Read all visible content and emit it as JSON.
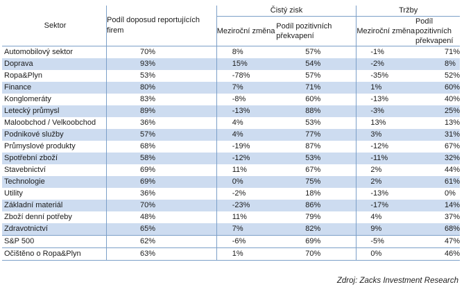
{
  "headers": {
    "sector": "Sektor",
    "share": "Podíl doposud reportujících firem",
    "net_income": "Čistý zisk",
    "revenue": "Tržby",
    "yoy": "Meziroční změna",
    "positive_surprise": "Podíl pozitivních překvapení"
  },
  "rows": [
    {
      "sector": "Automobilový sektor",
      "share": "70%",
      "ni_yoy": "8%",
      "ni_pos": "57%",
      "rev_yoy": "-1%",
      "rev_pos": "71%"
    },
    {
      "sector": "Doprava",
      "share": "93%",
      "ni_yoy": "15%",
      "ni_pos": "54%",
      "rev_yoy": "-2%",
      "rev_pos": "8%"
    },
    {
      "sector": "Ropa&Plyn",
      "share": "53%",
      "ni_yoy": "-78%",
      "ni_pos": "57%",
      "rev_yoy": "-35%",
      "rev_pos": "52%"
    },
    {
      "sector": "Finance",
      "share": "80%",
      "ni_yoy": "7%",
      "ni_pos": "71%",
      "rev_yoy": "1%",
      "rev_pos": "60%"
    },
    {
      "sector": "Konglomeráty",
      "share": "83%",
      "ni_yoy": "-8%",
      "ni_pos": "60%",
      "rev_yoy": "-13%",
      "rev_pos": "40%"
    },
    {
      "sector": "Letecký průmysl",
      "share": "89%",
      "ni_yoy": "-13%",
      "ni_pos": "88%",
      "rev_yoy": "-3%",
      "rev_pos": "25%"
    },
    {
      "sector": "Maloobchod / Velkoobchod",
      "share": "36%",
      "ni_yoy": "4%",
      "ni_pos": "53%",
      "rev_yoy": "13%",
      "rev_pos": "13%"
    },
    {
      "sector": "Podnikové služby",
      "share": "57%",
      "ni_yoy": "4%",
      "ni_pos": "77%",
      "rev_yoy": "3%",
      "rev_pos": "31%"
    },
    {
      "sector": "Průmyslové produkty",
      "share": "68%",
      "ni_yoy": "-19%",
      "ni_pos": "87%",
      "rev_yoy": "-12%",
      "rev_pos": "67%"
    },
    {
      "sector": "Spotřební zboží",
      "share": "58%",
      "ni_yoy": "-12%",
      "ni_pos": "53%",
      "rev_yoy": "-11%",
      "rev_pos": "32%"
    },
    {
      "sector": "Stavebnictví",
      "share": "69%",
      "ni_yoy": "11%",
      "ni_pos": "67%",
      "rev_yoy": "2%",
      "rev_pos": "44%"
    },
    {
      "sector": "Technologie",
      "share": "69%",
      "ni_yoy": "0%",
      "ni_pos": "75%",
      "rev_yoy": "2%",
      "rev_pos": "61%"
    },
    {
      "sector": "Utility",
      "share": "36%",
      "ni_yoy": "-2%",
      "ni_pos": "18%",
      "rev_yoy": "-13%",
      "rev_pos": "0%"
    },
    {
      "sector": "Základní materiál",
      "share": "70%",
      "ni_yoy": "-23%",
      "ni_pos": "86%",
      "rev_yoy": "-17%",
      "rev_pos": "14%"
    },
    {
      "sector": "Zboží denní potřeby",
      "share": "48%",
      "ni_yoy": "11%",
      "ni_pos": "79%",
      "rev_yoy": "4%",
      "rev_pos": "37%"
    },
    {
      "sector": "Zdravotnictví",
      "share": "65%",
      "ni_yoy": "7%",
      "ni_pos": "82%",
      "rev_yoy": "9%",
      "rev_pos": "68%"
    },
    {
      "sector": "S&P 500",
      "share": "62%",
      "ni_yoy": "-6%",
      "ni_pos": "69%",
      "rev_yoy": "-5%",
      "rev_pos": "47%"
    },
    {
      "sector": "Očištěno o Ropa&Plyn",
      "share": "63%",
      "ni_yoy": "1%",
      "ni_pos": "70%",
      "rev_yoy": "0%",
      "rev_pos": "46%"
    }
  ],
  "source": "Zdroj: Zacks Investment Research",
  "colors": {
    "alt_row": "#cddcf0",
    "rule": "#7b9fc8"
  }
}
